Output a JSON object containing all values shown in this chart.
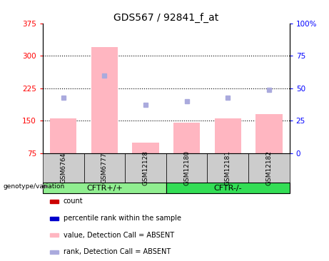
{
  "title": "GDS567 / 92841_f_at",
  "samples": [
    "GSM6764",
    "GSM6777",
    "GSM12128",
    "GSM12180",
    "GSM12181",
    "GSM12182"
  ],
  "values": [
    155,
    320,
    100,
    145,
    155,
    165
  ],
  "ranks_pct": [
    43,
    60,
    37,
    40,
    43,
    49
  ],
  "ylim_left": [
    75,
    375
  ],
  "ylim_right": [
    0,
    100
  ],
  "yticks_left": [
    75,
    150,
    225,
    300,
    375
  ],
  "yticks_right": [
    0,
    25,
    50,
    75,
    100
  ],
  "bar_color": "#FFB6C1",
  "dot_color": "#AAAADD",
  "group1_color": "#90EE90",
  "group2_color": "#33DD55",
  "group1_label": "CFTR+/+",
  "group2_label": "CFTR-/-",
  "legend_items": [
    {
      "label": "count",
      "color": "#CC0000"
    },
    {
      "label": "percentile rank within the sample",
      "color": "#0000CC"
    },
    {
      "label": "value, Detection Call = ABSENT",
      "color": "#FFB6C1"
    },
    {
      "label": "rank, Detection Call = ABSENT",
      "color": "#AAAADD"
    }
  ],
  "title_fontsize": 10,
  "tick_fontsize": 7.5,
  "legend_fontsize": 7,
  "sample_fontsize": 6.5,
  "group_fontsize": 8
}
